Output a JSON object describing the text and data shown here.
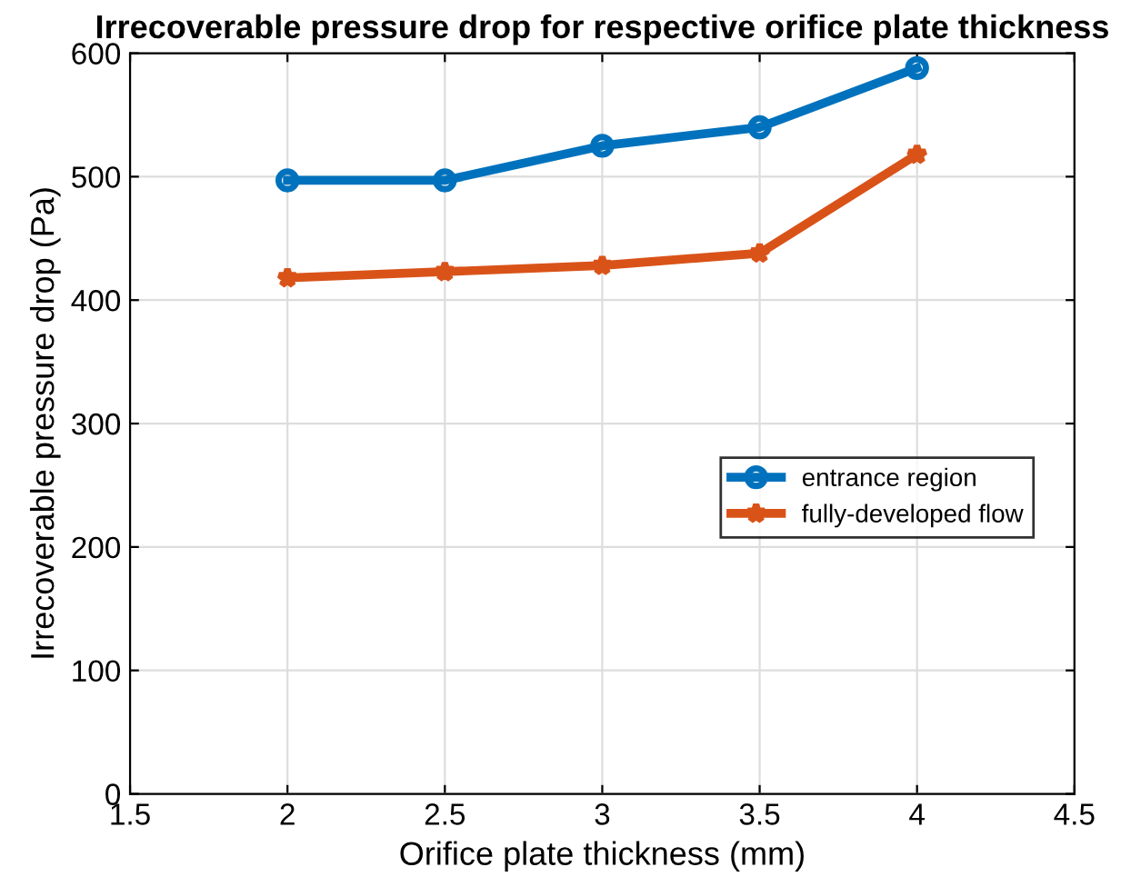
{
  "chart_data": {
    "type": "line",
    "title": "Irrecoverable pressure drop for respective orifice plate thickness",
    "xlabel": "Orifice plate thickness (mm)",
    "ylabel": "Irrecoverable pressure drop (Pa)",
    "x": [
      2,
      2.5,
      3,
      3.5,
      4
    ],
    "series": [
      {
        "name": "entrance region",
        "color": "#0072bd",
        "marker": "circle",
        "values": [
          497,
          497,
          525,
          540,
          588
        ]
      },
      {
        "name": "fully-developed flow",
        "color": "#d95319",
        "marker": "star",
        "values": [
          418,
          423,
          428,
          438,
          518
        ]
      }
    ],
    "xlim": [
      1.5,
      4.5
    ],
    "xticks": [
      1.5,
      2,
      2.5,
      3,
      3.5,
      4,
      4.5
    ],
    "ylim": [
      0,
      600
    ],
    "yticks": [
      0,
      100,
      200,
      300,
      400,
      500,
      600
    ],
    "grid": true,
    "legend": "right",
    "line_style": "solid"
  }
}
